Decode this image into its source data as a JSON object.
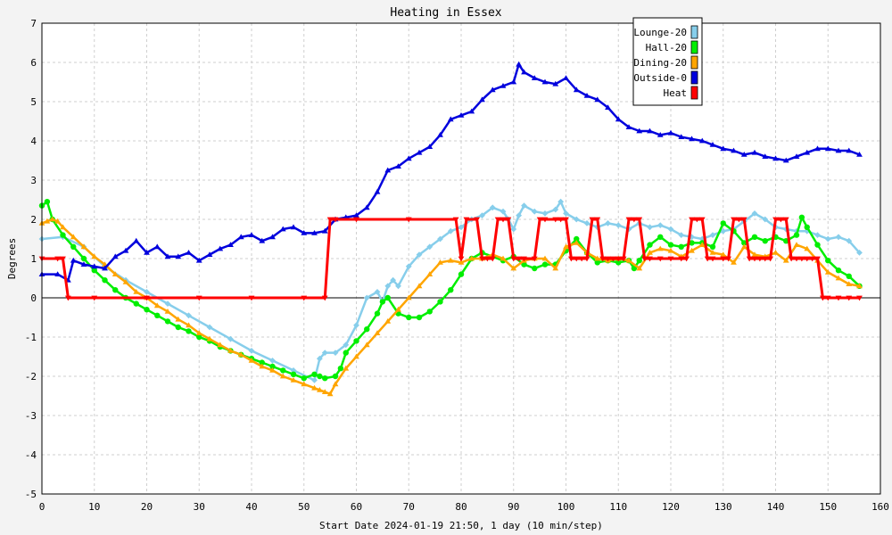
{
  "chart_data": {
    "type": "line",
    "title": "Heating in Essex",
    "xlabel": "Start Date 2024-01-19 21:50, 1 day (10 min/step)",
    "ylabel": "Degrees",
    "xlim": [
      0,
      160
    ],
    "ylim": [
      -5,
      7
    ],
    "xticks": [
      "0",
      "10",
      "20",
      "30",
      "40",
      "50",
      "60",
      "70",
      "80",
      "90",
      "100",
      "110",
      "120",
      "130",
      "140",
      "150",
      "160"
    ],
    "yticks": [
      "-5",
      "-4",
      "-3",
      "-2",
      "-1",
      "0",
      "1",
      "2",
      "3",
      "4",
      "5",
      "6",
      "7"
    ],
    "grid": true,
    "legend_position": "top-right",
    "series": [
      {
        "name": "Lounge-20",
        "color": "#87ceeb",
        "marker": "diamond",
        "x": [
          0,
          4,
          8,
          12,
          16,
          20,
          24,
          28,
          32,
          36,
          40,
          44,
          48,
          52,
          53,
          54,
          56,
          58,
          60,
          62,
          64,
          65,
          66,
          67,
          68,
          70,
          72,
          74,
          76,
          78,
          80,
          82,
          84,
          86,
          88,
          89,
          90,
          91,
          92,
          94,
          96,
          98,
          99,
          100,
          102,
          104,
          106,
          108,
          110,
          112,
          114,
          116,
          118,
          120,
          122,
          124,
          126,
          128,
          130,
          132,
          134,
          136,
          138,
          140,
          142,
          144,
          146,
          148,
          150,
          152,
          154,
          156
        ],
        "values": [
          1.5,
          1.55,
          1.3,
          0.8,
          0.45,
          0.15,
          -0.15,
          -0.45,
          -0.75,
          -1.05,
          -1.35,
          -1.6,
          -1.85,
          -2.1,
          -1.55,
          -1.4,
          -1.4,
          -1.2,
          -0.7,
          0.0,
          0.15,
          -0.1,
          0.3,
          0.45,
          0.3,
          0.8,
          1.1,
          1.3,
          1.5,
          1.7,
          1.8,
          2.0,
          2.1,
          2.3,
          2.2,
          2.0,
          1.75,
          2.1,
          2.35,
          2.2,
          2.15,
          2.25,
          2.45,
          2.15,
          2.0,
          1.9,
          1.8,
          1.9,
          1.85,
          1.75,
          1.9,
          1.8,
          1.85,
          1.75,
          1.6,
          1.55,
          1.5,
          1.6,
          1.7,
          1.75,
          1.95,
          2.15,
          2.0,
          1.8,
          1.75,
          1.7,
          1.7,
          1.6,
          1.5,
          1.55,
          1.45,
          1.15
        ]
      },
      {
        "name": "Hall-20",
        "color": "#00ee00",
        "marker": "circle",
        "x": [
          0,
          1,
          2,
          4,
          6,
          8,
          10,
          12,
          14,
          16,
          18,
          20,
          22,
          24,
          26,
          28,
          30,
          32,
          34,
          36,
          38,
          40,
          42,
          44,
          46,
          48,
          50,
          52,
          53,
          54,
          56,
          57,
          58,
          60,
          62,
          64,
          65,
          66,
          68,
          70,
          72,
          74,
          76,
          78,
          80,
          82,
          84,
          86,
          88,
          90,
          92,
          94,
          96,
          98,
          100,
          102,
          104,
          106,
          108,
          110,
          112,
          113,
          114,
          116,
          118,
          120,
          122,
          124,
          126,
          128,
          130,
          132,
          134,
          136,
          138,
          140,
          142,
          144,
          145,
          146,
          148,
          150,
          152,
          154,
          156
        ],
        "values": [
          2.35,
          2.45,
          2.0,
          1.6,
          1.3,
          1.0,
          0.7,
          0.45,
          0.2,
          0.0,
          -0.15,
          -0.3,
          -0.45,
          -0.6,
          -0.75,
          -0.85,
          -1.0,
          -1.1,
          -1.25,
          -1.35,
          -1.45,
          -1.55,
          -1.65,
          -1.75,
          -1.85,
          -1.95,
          -2.05,
          -1.95,
          -2.0,
          -2.05,
          -2.0,
          -1.8,
          -1.4,
          -1.1,
          -0.8,
          -0.4,
          -0.1,
          0.0,
          -0.4,
          -0.5,
          -0.5,
          -0.35,
          -0.1,
          0.2,
          0.6,
          1.0,
          1.15,
          1.05,
          0.95,
          1.05,
          0.85,
          0.75,
          0.85,
          0.85,
          1.2,
          1.5,
          1.15,
          0.9,
          0.95,
          0.9,
          0.95,
          0.75,
          0.95,
          1.35,
          1.55,
          1.35,
          1.3,
          1.4,
          1.4,
          1.3,
          1.9,
          1.7,
          1.4,
          1.55,
          1.45,
          1.55,
          1.45,
          1.6,
          2.05,
          1.8,
          1.35,
          0.95,
          0.7,
          0.55,
          0.3
        ]
      },
      {
        "name": "Dining-20",
        "color": "#ffa500",
        "marker": "triangle",
        "x": [
          0,
          1,
          2,
          3,
          4,
          6,
          8,
          10,
          12,
          14,
          16,
          18,
          20,
          22,
          24,
          26,
          28,
          30,
          32,
          34,
          36,
          38,
          40,
          42,
          44,
          46,
          48,
          50,
          52,
          53,
          54,
          55,
          56,
          58,
          60,
          62,
          64,
          66,
          68,
          70,
          72,
          74,
          76,
          78,
          80,
          82,
          84,
          86,
          88,
          90,
          92,
          94,
          96,
          98,
          100,
          102,
          104,
          106,
          108,
          110,
          112,
          114,
          116,
          118,
          120,
          122,
          124,
          126,
          128,
          130,
          132,
          134,
          136,
          138,
          140,
          142,
          144,
          146,
          148,
          150,
          152,
          154,
          156
        ],
        "values": [
          1.9,
          1.95,
          2.0,
          1.95,
          1.8,
          1.55,
          1.3,
          1.05,
          0.85,
          0.6,
          0.4,
          0.15,
          0.0,
          -0.2,
          -0.35,
          -0.55,
          -0.7,
          -0.9,
          -1.05,
          -1.2,
          -1.35,
          -1.45,
          -1.6,
          -1.75,
          -1.85,
          -2.0,
          -2.1,
          -2.2,
          -2.3,
          -2.35,
          -2.4,
          -2.45,
          -2.2,
          -1.8,
          -1.5,
          -1.2,
          -0.9,
          -0.6,
          -0.3,
          0.0,
          0.3,
          0.6,
          0.9,
          0.95,
          0.9,
          1.0,
          1.0,
          1.1,
          1.0,
          0.75,
          0.95,
          1.0,
          1.0,
          0.75,
          1.3,
          1.4,
          1.15,
          1.0,
          0.95,
          1.0,
          0.95,
          0.75,
          1.15,
          1.25,
          1.2,
          1.05,
          1.2,
          1.35,
          1.15,
          1.1,
          0.9,
          1.3,
          1.1,
          1.05,
          1.15,
          0.95,
          1.35,
          1.25,
          0.95,
          0.65,
          0.5,
          0.35,
          0.3
        ]
      },
      {
        "name": "Outside-0",
        "color": "#0000dd",
        "marker": "triangle",
        "x": [
          0,
          3,
          5,
          6,
          8,
          10,
          12,
          14,
          16,
          18,
          20,
          22,
          24,
          26,
          28,
          30,
          32,
          34,
          36,
          38,
          40,
          42,
          44,
          46,
          48,
          50,
          52,
          54,
          56,
          58,
          60,
          62,
          64,
          66,
          68,
          70,
          72,
          74,
          76,
          78,
          80,
          82,
          84,
          86,
          88,
          90,
          91,
          92,
          94,
          96,
          98,
          100,
          102,
          104,
          106,
          108,
          110,
          112,
          114,
          116,
          118,
          120,
          122,
          124,
          126,
          128,
          130,
          132,
          134,
          136,
          138,
          140,
          142,
          144,
          146,
          148,
          150,
          152,
          154,
          156
        ],
        "values": [
          0.6,
          0.6,
          0.45,
          0.95,
          0.85,
          0.8,
          0.75,
          1.05,
          1.2,
          1.45,
          1.15,
          1.3,
          1.05,
          1.05,
          1.15,
          0.95,
          1.1,
          1.25,
          1.35,
          1.55,
          1.6,
          1.45,
          1.55,
          1.75,
          1.8,
          1.65,
          1.65,
          1.7,
          2.0,
          2.05,
          2.1,
          2.3,
          2.7,
          3.25,
          3.35,
          3.55,
          3.7,
          3.85,
          4.15,
          4.55,
          4.65,
          4.75,
          5.05,
          5.3,
          5.4,
          5.5,
          5.95,
          5.75,
          5.6,
          5.5,
          5.45,
          5.6,
          5.3,
          5.15,
          5.05,
          4.85,
          4.55,
          4.35,
          4.25,
          4.25,
          4.15,
          4.2,
          4.1,
          4.05,
          4.0,
          3.9,
          3.8,
          3.75,
          3.65,
          3.7,
          3.6,
          3.55,
          3.5,
          3.6,
          3.7,
          3.8,
          3.8,
          3.75,
          3.75,
          3.65
        ]
      },
      {
        "name": "Heat",
        "color": "#ff0000",
        "marker": "triangle-down",
        "x": [
          0,
          3,
          4,
          5,
          10,
          20,
          30,
          40,
          50,
          54,
          55,
          56,
          60,
          70,
          79,
          80,
          81,
          83,
          84,
          85,
          86,
          87,
          88,
          89,
          90,
          91,
          92,
          94,
          95,
          96,
          98,
          99,
          100,
          101,
          102,
          103,
          104,
          105,
          106,
          107,
          108,
          109,
          110,
          111,
          112,
          113,
          114,
          115,
          116,
          118,
          120,
          122,
          123,
          124,
          125,
          126,
          127,
          128,
          130,
          131,
          132,
          133,
          134,
          135,
          136,
          137,
          138,
          139,
          140,
          141,
          142,
          143,
          144,
          145,
          146,
          147,
          148,
          149,
          150,
          152,
          154,
          156
        ],
        "values": [
          1,
          1,
          1,
          0,
          0,
          0,
          0,
          0,
          0,
          0,
          2,
          2,
          2,
          2,
          2,
          1,
          2,
          2,
          1,
          1,
          1,
          2,
          2,
          2,
          1,
          1,
          1,
          1,
          2,
          2,
          2,
          2,
          2,
          1,
          1,
          1,
          1,
          2,
          2,
          1,
          1,
          1,
          1,
          1,
          2,
          2,
          2,
          1,
          1,
          1,
          1,
          1,
          1,
          2,
          2,
          2,
          1,
          1,
          1,
          1,
          2,
          2,
          2,
          1,
          1,
          1,
          1,
          1,
          2,
          2,
          2,
          1,
          1,
          1,
          1,
          1,
          1,
          0,
          0,
          0,
          0,
          0
        ]
      }
    ]
  }
}
